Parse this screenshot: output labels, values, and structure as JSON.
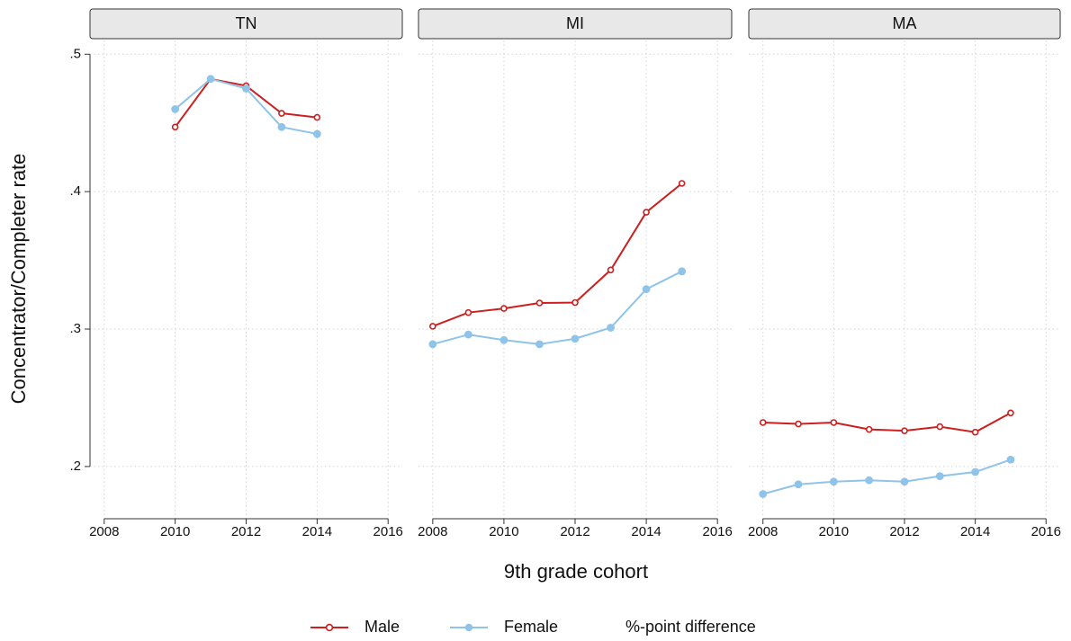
{
  "chart_data": {
    "type": "line",
    "xlabel": "9th grade cohort",
    "ylabel": "Concentrator/Completer rate",
    "x": [
      2008,
      2009,
      2010,
      2011,
      2012,
      2013,
      2014,
      2015
    ],
    "xlim": [
      2007.6,
      2016.4
    ],
    "xticks": [
      2008,
      2010,
      2012,
      2014,
      2016
    ],
    "ylim": [
      0.162,
      0.51
    ],
    "yticks": [
      {
        "value": 0.2,
        "label": ".2"
      },
      {
        "value": 0.3,
        "label": ".3"
      },
      {
        "value": 0.4,
        "label": ".4"
      },
      {
        "value": 0.5,
        "label": ".5"
      }
    ],
    "grid": true,
    "series": [
      {
        "name": "Male",
        "color": "#cc1f1f",
        "marker": "hollow"
      },
      {
        "name": "Female",
        "color": "#8fc3e8",
        "marker": "filled"
      },
      {
        "name": "%-point difference"
      }
    ],
    "panels": [
      {
        "title": "TN",
        "values": [
          [
            null,
            null,
            0.447,
            0.482,
            0.477,
            0.457,
            0.454,
            null
          ],
          [
            null,
            null,
            0.46,
            0.482,
            0.475,
            0.447,
            0.442,
            null
          ]
        ]
      },
      {
        "title": "MI",
        "values": [
          [
            0.302,
            0.312,
            0.315,
            0.319,
            0.3193,
            0.343,
            0.385,
            0.406
          ],
          [
            0.289,
            0.296,
            0.292,
            0.289,
            0.293,
            0.301,
            0.329,
            0.342
          ]
        ]
      },
      {
        "title": "MA",
        "values": [
          [
            0.232,
            0.231,
            0.232,
            0.227,
            0.226,
            0.229,
            0.225,
            0.239
          ],
          [
            0.18,
            0.187,
            0.189,
            0.19,
            0.189,
            0.193,
            0.196,
            0.205
          ]
        ]
      }
    ]
  }
}
